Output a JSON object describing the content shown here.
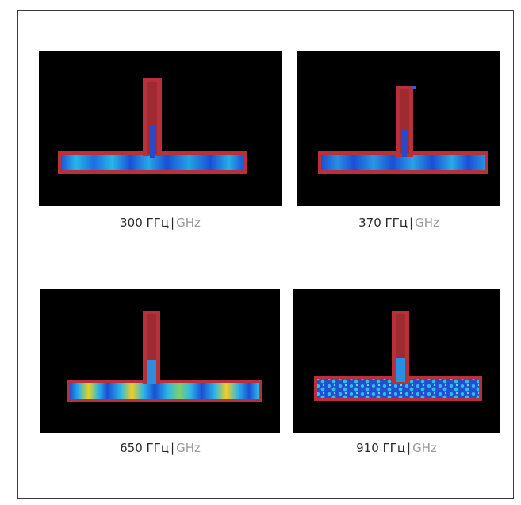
{
  "figure": {
    "panels": [
      {
        "frequency": "300",
        "unit_ru": "ГГц",
        "separator": "|",
        "unit_en": "GHz",
        "field_pattern": "low-mode-blue"
      },
      {
        "frequency": "370",
        "unit_ru": "ГГц",
        "separator": "|",
        "unit_en": "GHz",
        "field_pattern": "banded-blue"
      },
      {
        "frequency": "650",
        "unit_ru": "ГГц",
        "separator": "|",
        "unit_en": "GHz",
        "field_pattern": "multicolor-bands"
      },
      {
        "frequency": "910",
        "unit_ru": "ГГц",
        "separator": "|",
        "unit_en": "GHz",
        "field_pattern": "speckled-blue"
      }
    ]
  },
  "colors": {
    "background": "#000000",
    "waveguide_wall": "#b8313a",
    "field_low": "#1f3fd0",
    "field_mid": "#22b7e8",
    "field_high": "#f2d21a"
  }
}
